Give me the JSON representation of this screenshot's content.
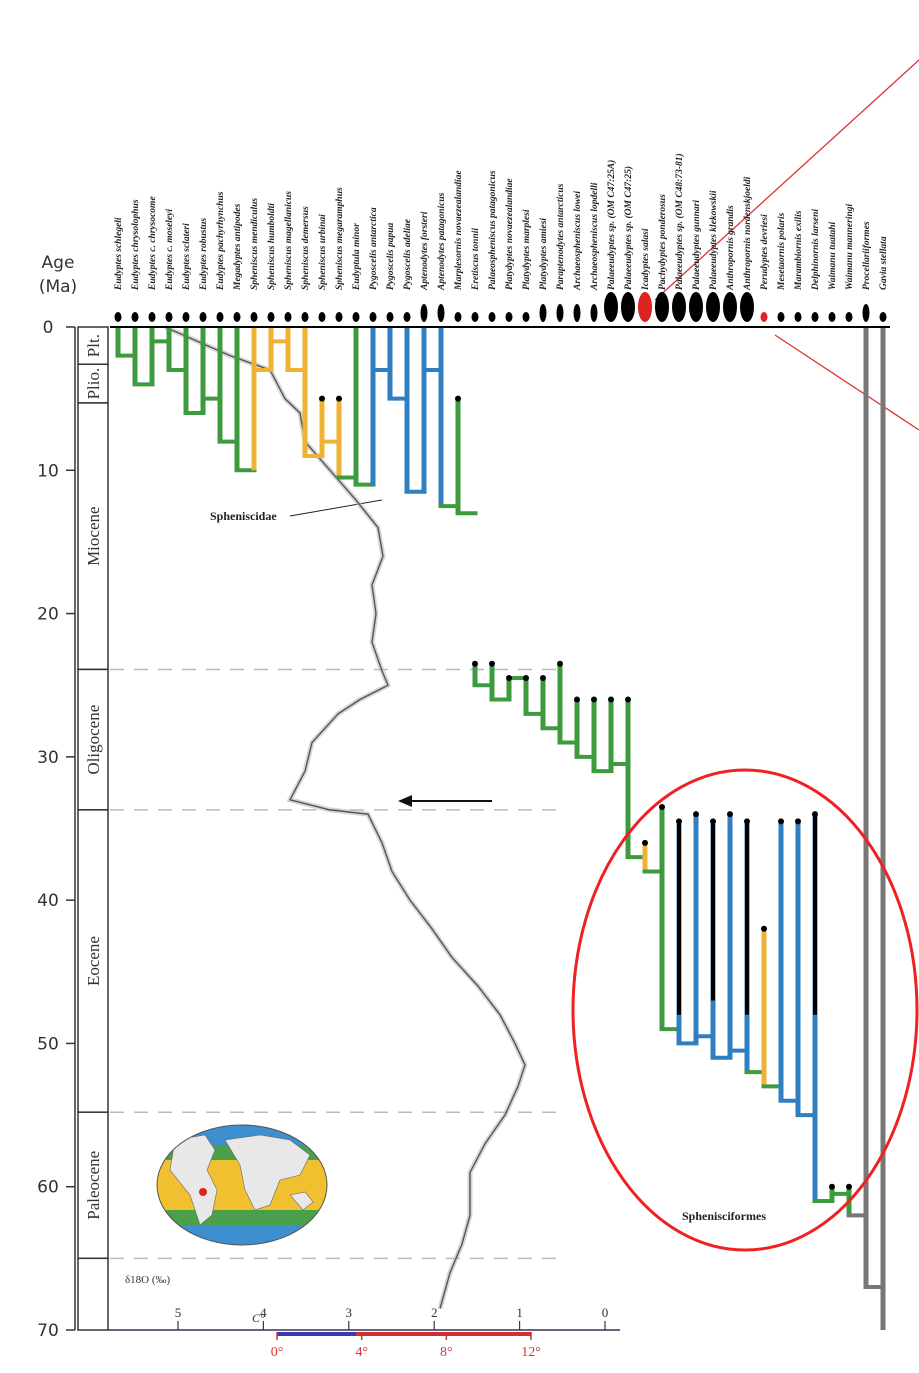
{
  "age_axis": {
    "title": [
      "Age",
      "(Ma)"
    ],
    "ticks": [
      0,
      10,
      20,
      30,
      40,
      50,
      60,
      70
    ],
    "lim": [
      0,
      70
    ]
  },
  "epochs": [
    {
      "name": "Plt.",
      "start": 0,
      "end": 2.6
    },
    {
      "name": "Plio.",
      "start": 2.6,
      "end": 5.3
    },
    {
      "name": "Miocene",
      "start": 5.3,
      "end": 23.9
    },
    {
      "name": "Oligocene",
      "start": 23.9,
      "end": 33.7
    },
    {
      "name": "Eocene",
      "start": 33.7,
      "end": 54.8
    },
    {
      "name": "Paleocene",
      "start": 54.8,
      "end": 65
    },
    {
      "name": null,
      "start": 65,
      "end": 70
    }
  ],
  "taxa": [
    {
      "name": "Eudyptes schlegeli",
      "color": "#3d9a3d"
    },
    {
      "name": "Eudyptes chrysolophus",
      "color": "#3d9a3d"
    },
    {
      "name": "Eudyptes c. chrysocome",
      "color": "#3d9a3d"
    },
    {
      "name": "Eudyptes c. moseleyi",
      "color": "#3d9a3d"
    },
    {
      "name": "Eudyptes sclateri",
      "color": "#3d9a3d"
    },
    {
      "name": "Eudyptes robustus",
      "color": "#3d9a3d"
    },
    {
      "name": "Eudyptes pachyrhynchus",
      "color": "#3d9a3d"
    },
    {
      "name": "Megadyptes antipodes",
      "color": "#3d9a3d"
    },
    {
      "name": "Spheniscus mendiculus",
      "color": "#f0b234"
    },
    {
      "name": "Spheniscus humboldti",
      "color": "#f0b234"
    },
    {
      "name": "Spheniscus magellanicus",
      "color": "#f0b234"
    },
    {
      "name": "Spheniscus demersus",
      "color": "#f0b234"
    },
    {
      "name": "Spheniscus urbinai",
      "color": "#f0b234"
    },
    {
      "name": "Spheniscus megaramphus",
      "color": "#f0b234"
    },
    {
      "name": "Eudyptula minor",
      "color": "#3d9a3d"
    },
    {
      "name": "Pygoscelis antarctica",
      "color": "#2f7fc1"
    },
    {
      "name": "Pygoscelis papua",
      "color": "#2f7fc1"
    },
    {
      "name": "Pygoscelis adeliae",
      "color": "#2f7fc1"
    },
    {
      "name": "Aptenodytes forsteri",
      "color": "#2f7fc1"
    },
    {
      "name": "Aptenodytes patagonicus",
      "color": "#2f7fc1"
    },
    {
      "name": "Marplesornis novaezealandiae",
      "color": "#3d9a3d"
    },
    {
      "name": "Eretiscus tonnii",
      "color": "#3d9a3d"
    },
    {
      "name": "Palaeospheniscus patagonicus",
      "color": "#3d9a3d"
    },
    {
      "name": "Platydyptes novaezealandiae",
      "color": "#3d9a3d"
    },
    {
      "name": "Platydyptes marplesi",
      "color": "#3d9a3d"
    },
    {
      "name": "Platydyptes amiesi",
      "color": "#3d9a3d"
    },
    {
      "name": "Paraptenodytes antarcticus",
      "color": "#3d9a3d"
    },
    {
      "name": "Archaeospheniscus lowei",
      "color": "#3d9a3d"
    },
    {
      "name": "Archaeospheniscus lopdelli",
      "color": "#3d9a3d"
    },
    {
      "name": "Palaeeudyptes sp. (OM C47:25A)",
      "color": "#3d9a3d"
    },
    {
      "name": "Palaeeudyptes sp. (OM C47:25)",
      "color": "#3d9a3d"
    },
    {
      "name": "Icadyptes salasi",
      "color": "#f0b234"
    },
    {
      "name": "Pachydyptes ponderosus",
      "color": "#3d9a3d"
    },
    {
      "name": "Palaeeudyptes sp. (OM C48:73-81)",
      "color": "#2f7fc1"
    },
    {
      "name": "Palaeeudyptes gunnari",
      "color": "#2f7fc1"
    },
    {
      "name": "Palaeeudyptes klekowskii",
      "color": "#2f7fc1"
    },
    {
      "name": "Anthropornis grandis",
      "color": "#2f7fc1"
    },
    {
      "name": "Anthropornis nordenskjoeldi",
      "color": "#2f7fc1"
    },
    {
      "name": "Perudyptes devriesi",
      "color": "#f0b234"
    },
    {
      "name": "Mesetaornis polaris",
      "color": "#2f7fc1"
    },
    {
      "name": "Marambiornis exilis",
      "color": "#2f7fc1"
    },
    {
      "name": "Delphinornis larseni",
      "color": "#2f7fc1"
    },
    {
      "name": "Waimanu tuatahi",
      "color": "#3d9a3d"
    },
    {
      "name": "Waimanu manneringi",
      "color": "#3d9a3d"
    },
    {
      "name": "Procellariiformes",
      "color": "#777777"
    },
    {
      "name": "Gavia stellata",
      "color": "#777777"
    }
  ],
  "annotations": {
    "spheniscidae": "Spheniscidae",
    "sphenisciformes": "Sphenisciformes"
  },
  "isotope_axis": {
    "title": "δ18O (‰)",
    "ticks": [
      5,
      4,
      3,
      2,
      1,
      0
    ]
  },
  "temperature_axis": {
    "title": "C°",
    "ticks": [
      {
        "value": 0,
        "label": "0°"
      },
      {
        "value": 4,
        "label": "4°"
      },
      {
        "value": 8,
        "label": "8°"
      },
      {
        "value": 12,
        "label": "12°"
      }
    ]
  }
}
